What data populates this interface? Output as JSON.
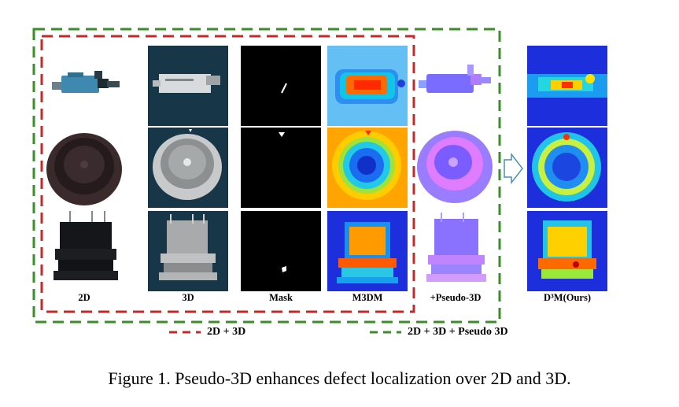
{
  "columns": {
    "c2d": "2D",
    "c3d": "3D",
    "mask": "Mask",
    "m3dm": "M3DM",
    "pseudo": "+Pseudo-3D",
    "d3m": "D³M(Ours)"
  },
  "legend": {
    "red": "2D + 3D",
    "green": "2D + 3D + Pseudo 3D"
  },
  "caption": "Figure 1. Pseudo-3D enhances defect localization over 2D and 3D.",
  "colors": {
    "red_box": "#c62828",
    "green_box": "#3c8c2a"
  }
}
